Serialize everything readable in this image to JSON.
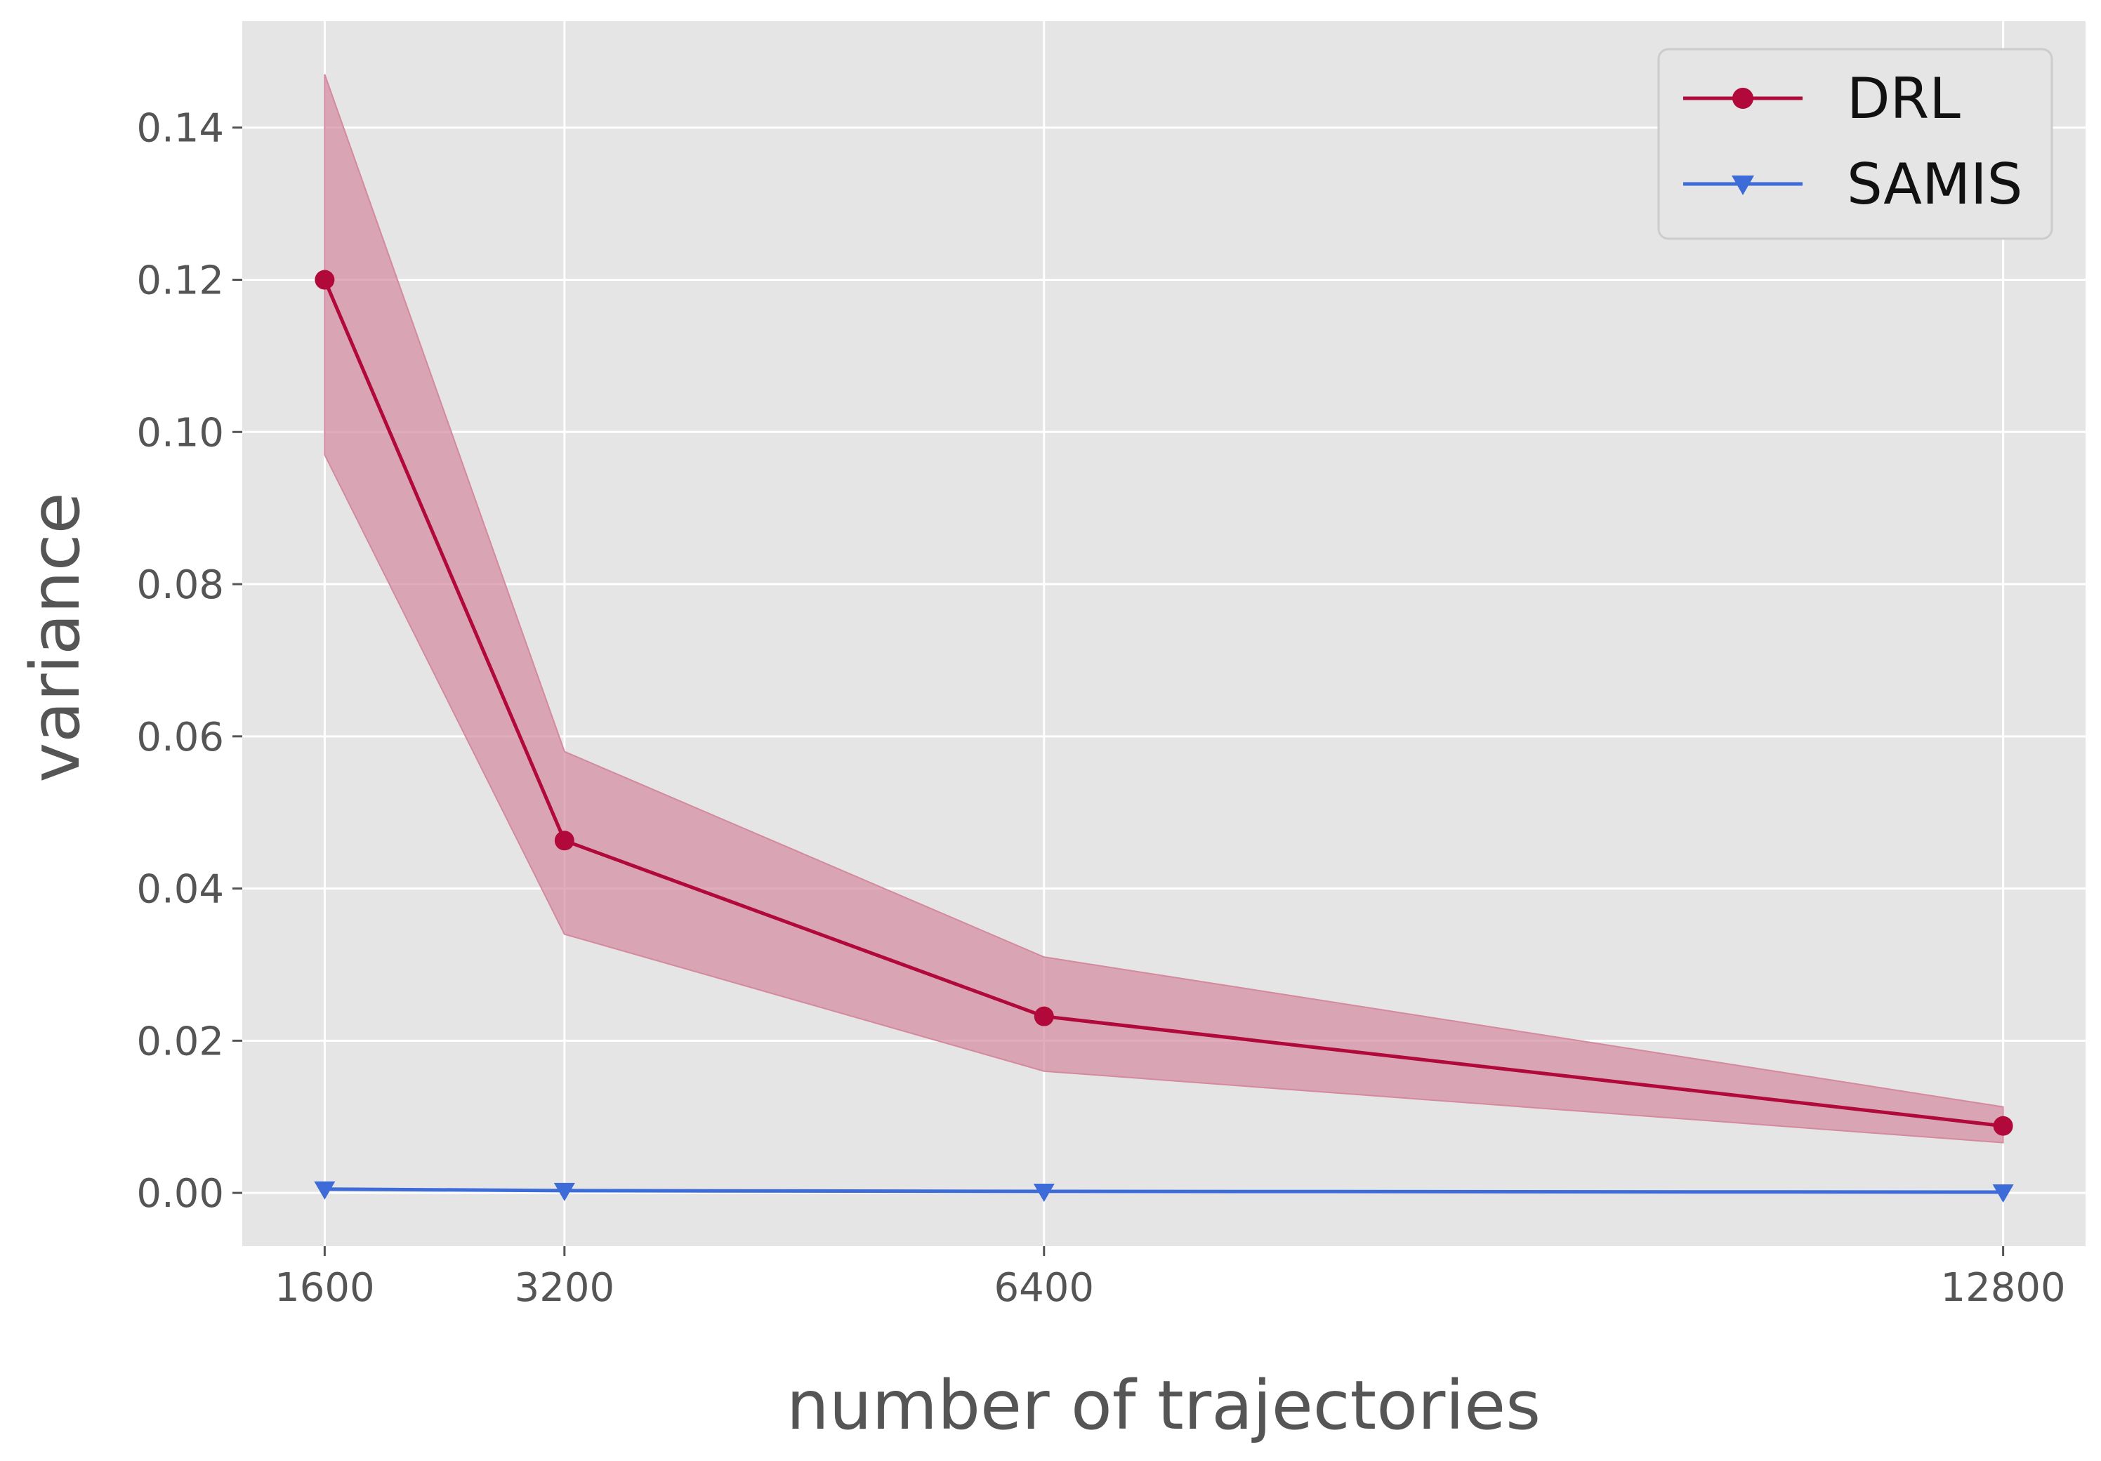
{
  "chart_data": {
    "type": "line",
    "title": "",
    "xlabel": "number of trajectories",
    "ylabel": "variance",
    "x": [
      1600,
      3200,
      6400,
      12800
    ],
    "x_tick_labels": [
      "1600",
      "3200",
      "6400",
      "12800"
    ],
    "y_ticks": [
      0.0,
      0.02,
      0.04,
      0.06,
      0.08,
      0.1,
      0.12,
      0.14
    ],
    "y_tick_labels": [
      "0.00",
      "0.02",
      "0.04",
      "0.06",
      "0.08",
      "0.10",
      "0.12",
      "0.14"
    ],
    "xlim": [
      1050,
      13350
    ],
    "ylim": [
      -0.007,
      0.154
    ],
    "grid": true,
    "legend_position": "top-right",
    "series": [
      {
        "name": "DRL",
        "color": "#b0093a",
        "marker": "circle",
        "values": [
          0.12,
          0.0463,
          0.0232,
          0.0088
        ],
        "band_lower": [
          0.097,
          0.034,
          0.016,
          0.0066
        ],
        "band_upper": [
          0.147,
          0.058,
          0.031,
          0.0113
        ],
        "band_color": "#d4899f"
      },
      {
        "name": "SAMIS",
        "color": "#3d6bd8",
        "marker": "triangle-down",
        "values": [
          0.0005,
          0.0003,
          0.0002,
          0.0001
        ]
      }
    ]
  }
}
